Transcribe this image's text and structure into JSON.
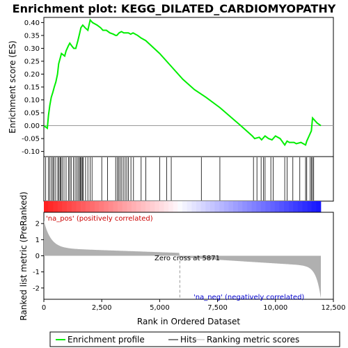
{
  "chart_data": {
    "type": "line",
    "title": "Enrichment plot: KEGG_DILATED_CARDIOMYOPATHY",
    "xlabel": "Rank in Ordered Dataset",
    "ylabel_top": "Enrichment score (ES)",
    "ylabel_bottom": "Ranked list metric (PreRanked)",
    "xlim": [
      0,
      12500
    ],
    "x_ticks": [
      0,
      2500,
      5000,
      7500,
      10000,
      12500
    ],
    "x_tick_labels": [
      "0",
      "2,500",
      "5,000",
      "7,500",
      "10,000",
      "12,500"
    ],
    "es_ylim": [
      -0.12,
      0.42
    ],
    "es_ticks": [
      -0.1,
      -0.05,
      0.0,
      0.05,
      0.1,
      0.15,
      0.2,
      0.25,
      0.3,
      0.35,
      0.4
    ],
    "es_tick_labels": [
      "-0.10",
      "-0.05",
      "0.00",
      "0.05",
      "0.10",
      "0.15",
      "0.20",
      "0.25",
      "0.30",
      "0.35",
      "0.40"
    ],
    "metric_ylim": [
      -2.7,
      2.7
    ],
    "metric_ticks": [
      2,
      1,
      0,
      -1,
      -2
    ],
    "metric_tick_labels": [
      "2",
      "1",
      "0",
      "-1",
      "-2"
    ],
    "n_genes": 11960,
    "zero_cross": 5871,
    "annotations": {
      "pos": "'na_pos' (positively correlated)",
      "neg": "'na_neg' (negatively correlated)",
      "zero": "Zero cross at 5871"
    },
    "legend": [
      "Enrichment profile",
      "Hits",
      "Ranking metric scores"
    ],
    "colors": {
      "es_line": "#00ee00",
      "hits": "#000000",
      "metric_fill": "#b0b0b0",
      "zero_line": "#999999",
      "pos_text": "#cc0000",
      "neg_text": "#0000cc"
    },
    "es_curve": {
      "x": [
        0,
        150,
        200,
        260,
        320,
        390,
        450,
        520,
        590,
        640,
        700,
        760,
        900,
        960,
        1060,
        1120,
        1200,
        1290,
        1380,
        1470,
        1550,
        1600,
        1680,
        1780,
        1900,
        2000,
        2100,
        2300,
        2450,
        2550,
        2700,
        2850,
        3000,
        3100,
        3150,
        3250,
        3350,
        3450,
        3550,
        3650,
        3750,
        3850,
        3950,
        4050,
        4200,
        4400,
        5000,
        5500,
        6000,
        6500,
        7000,
        7600,
        8500,
        9000,
        9100,
        9300,
        9400,
        9550,
        9700,
        9850,
        10000,
        10200,
        10400,
        10500,
        10600,
        10800,
        10900,
        11100,
        11300,
        11350,
        11450,
        11550,
        11600,
        11700,
        11800,
        11960
      ],
      "y": [
        0.0,
        -0.01,
        0.04,
        0.08,
        0.11,
        0.13,
        0.15,
        0.17,
        0.2,
        0.24,
        0.26,
        0.28,
        0.27,
        0.29,
        0.31,
        0.32,
        0.31,
        0.3,
        0.3,
        0.33,
        0.36,
        0.38,
        0.39,
        0.38,
        0.37,
        0.41,
        0.4,
        0.39,
        0.38,
        0.37,
        0.37,
        0.36,
        0.355,
        0.35,
        0.35,
        0.36,
        0.365,
        0.36,
        0.36,
        0.36,
        0.355,
        0.36,
        0.355,
        0.35,
        0.34,
        0.33,
        0.28,
        0.23,
        0.18,
        0.14,
        0.11,
        0.07,
        0.0,
        -0.04,
        -0.05,
        -0.045,
        -0.055,
        -0.04,
        -0.05,
        -0.055,
        -0.04,
        -0.05,
        -0.075,
        -0.06,
        -0.065,
        -0.065,
        -0.07,
        -0.065,
        -0.075,
        -0.06,
        -0.04,
        -0.02,
        0.03,
        0.02,
        0.01,
        0.0
      ]
    },
    "hits": [
      80,
      200,
      260,
      330,
      390,
      440,
      510,
      600,
      650,
      700,
      740,
      790,
      870,
      960,
      1070,
      1120,
      1180,
      1280,
      1350,
      1420,
      1480,
      1540,
      1580,
      1620,
      1660,
      1700,
      1800,
      1900,
      2000,
      2080,
      2500,
      2750,
      3100,
      3170,
      3230,
      3290,
      3360,
      3430,
      3510,
      3580,
      3650,
      3760,
      3870,
      4200,
      4400,
      5000,
      5300,
      5500,
      6800,
      7600,
      9050,
      9200,
      9380,
      9480,
      9550,
      9800,
      9900,
      10400,
      10500,
      10750,
      11050,
      11300,
      11350,
      11500,
      11550,
      11600,
      11650
    ]
  }
}
